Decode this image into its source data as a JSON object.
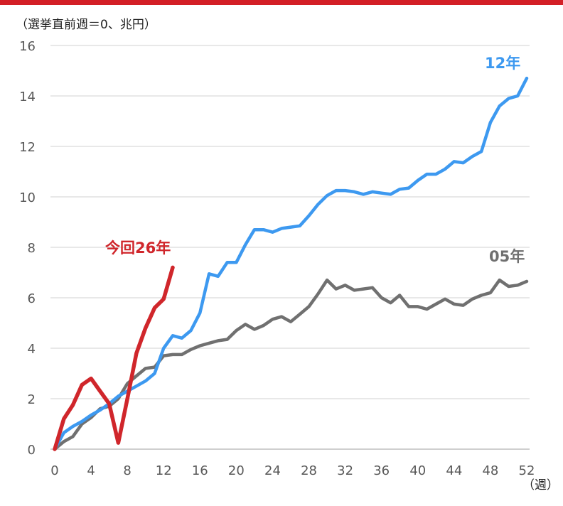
{
  "chart_data": {
    "type": "line",
    "y_unit_label": "（選挙直前週＝0、兆円）",
    "x_unit_label": "（週）",
    "xlim": [
      0,
      52
    ],
    "ylim": [
      0,
      16
    ],
    "x_ticks": [
      0,
      4,
      8,
      12,
      16,
      20,
      24,
      28,
      32,
      36,
      40,
      44,
      48,
      52
    ],
    "y_ticks": [
      0,
      2,
      4,
      6,
      8,
      10,
      12,
      14,
      16
    ],
    "grid": true,
    "series": [
      {
        "name": "05年",
        "color": "#707070",
        "x": [
          0,
          1,
          2,
          3,
          4,
          5,
          6,
          7,
          8,
          9,
          10,
          11,
          12,
          13,
          14,
          15,
          16,
          17,
          18,
          19,
          20,
          21,
          22,
          23,
          24,
          25,
          26,
          27,
          28,
          29,
          30,
          31,
          32,
          33,
          34,
          35,
          36,
          37,
          38,
          39,
          40,
          41,
          42,
          43,
          44,
          45,
          46,
          47,
          48,
          49,
          50,
          51,
          52
        ],
        "values": [
          0,
          0.3,
          0.5,
          1.0,
          1.25,
          1.6,
          1.7,
          2.0,
          2.6,
          2.9,
          3.2,
          3.25,
          3.7,
          3.75,
          3.75,
          3.95,
          4.1,
          4.2,
          4.3,
          4.35,
          4.7,
          4.95,
          4.75,
          4.9,
          5.15,
          5.25,
          5.05,
          5.35,
          5.65,
          6.15,
          6.7,
          6.35,
          6.5,
          6.3,
          6.35,
          6.4,
          6.0,
          5.8,
          6.1,
          5.65,
          5.65,
          5.55,
          5.75,
          5.95,
          5.75,
          5.7,
          5.95,
          6.1,
          6.2,
          6.7,
          6.45,
          6.5,
          6.65
        ]
      },
      {
        "name": "12年",
        "color": "#3d99f0",
        "x": [
          0,
          1,
          2,
          3,
          4,
          5,
          6,
          7,
          8,
          9,
          10,
          11,
          12,
          13,
          14,
          15,
          16,
          17,
          18,
          19,
          20,
          21,
          22,
          23,
          24,
          25,
          26,
          27,
          28,
          29,
          30,
          31,
          32,
          33,
          34,
          35,
          36,
          37,
          38,
          39,
          40,
          41,
          42,
          43,
          44,
          45,
          46,
          47,
          48,
          49,
          50,
          51,
          52
        ],
        "values": [
          0,
          0.65,
          0.9,
          1.1,
          1.35,
          1.55,
          1.8,
          2.1,
          2.3,
          2.5,
          2.7,
          3.0,
          4.0,
          4.5,
          4.4,
          4.7,
          5.4,
          6.95,
          6.85,
          7.4,
          7.4,
          8.1,
          8.7,
          8.7,
          8.6,
          8.75,
          8.8,
          8.85,
          9.25,
          9.7,
          10.05,
          10.25,
          10.25,
          10.2,
          10.1,
          10.2,
          10.15,
          10.1,
          10.3,
          10.35,
          10.65,
          10.9,
          10.9,
          11.1,
          11.4,
          11.35,
          11.6,
          11.8,
          12.95,
          13.6,
          13.9,
          14.0,
          14.7
        ]
      },
      {
        "name": "今回26年",
        "color": "#d0262b",
        "x": [
          0,
          1,
          2,
          3,
          4,
          5,
          6,
          7,
          8,
          9,
          10,
          11,
          12,
          13
        ],
        "values": [
          0,
          1.2,
          1.75,
          2.55,
          2.8,
          2.3,
          1.8,
          0.25,
          2.0,
          3.8,
          4.8,
          5.6,
          5.95,
          7.2
        ]
      }
    ]
  }
}
